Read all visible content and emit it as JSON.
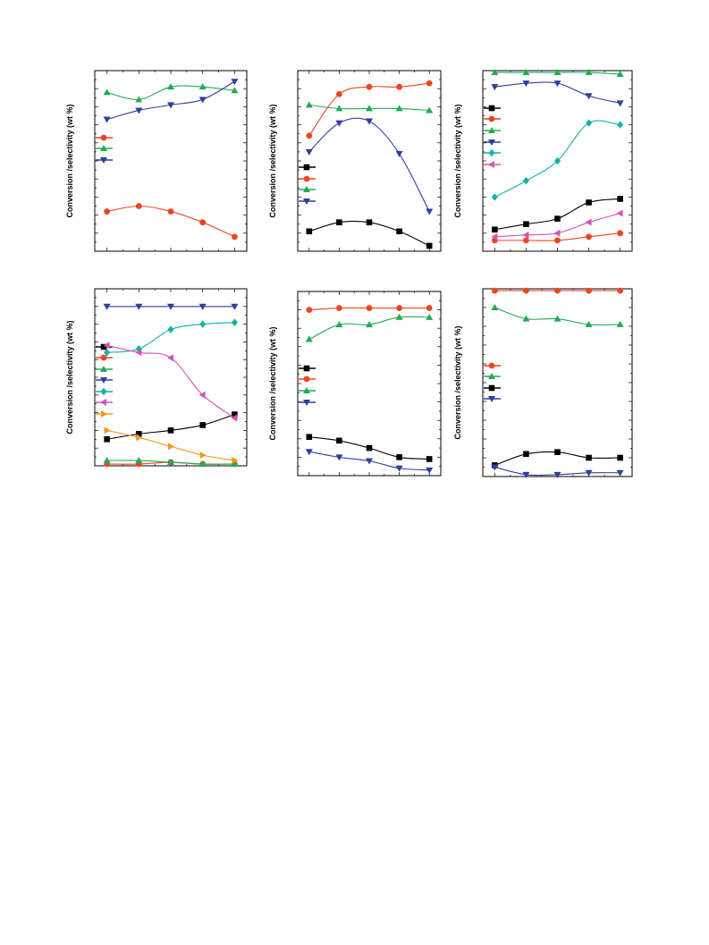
{
  "colors": {
    "black": "#000000",
    "red": "#ee4422",
    "green": "#22aa55",
    "blue": "#2e3e9c",
    "cyan": "#11b3a8",
    "magenta": "#d254b8",
    "orange": "#f5961e"
  },
  "chart_data": [
    {
      "type": "scatter",
      "ylabel": "Conversion /selectivity (wt %)",
      "x": [
        1,
        2,
        3,
        4,
        5
      ],
      "ylim": [
        0,
        100
      ],
      "legend_placement": "left",
      "series": [
        {
          "color": "red",
          "marker": "circle",
          "values": [
            22,
            25,
            22,
            16,
            8
          ]
        },
        {
          "color": "green",
          "marker": "triangle-up",
          "values": [
            88,
            84,
            91,
            91,
            89
          ]
        },
        {
          "color": "blue",
          "marker": "triangle-down",
          "values": [
            73,
            78,
            81,
            84,
            94
          ]
        }
      ]
    },
    {
      "type": "scatter",
      "ylabel": "Conversion /selectivity (wt %)",
      "x": [
        1,
        2,
        3,
        4,
        5
      ],
      "ylim": [
        0,
        100
      ],
      "legend_placement": "left",
      "series": [
        {
          "color": "black",
          "marker": "square",
          "values": [
            11,
            16,
            16,
            11,
            3
          ]
        },
        {
          "color": "red",
          "marker": "circle",
          "values": [
            64,
            87,
            91,
            91,
            93
          ]
        },
        {
          "color": "green",
          "marker": "triangle-up",
          "values": [
            81,
            79,
            79,
            79,
            78
          ]
        },
        {
          "color": "blue",
          "marker": "triangle-down",
          "values": [
            55,
            71,
            72,
            54,
            22
          ]
        }
      ]
    },
    {
      "type": "scatter",
      "ylabel": "Conversion /selectivity (wt %)",
      "x": [
        1,
        2,
        3,
        4,
        5
      ],
      "ylim": [
        0,
        100
      ],
      "legend_placement": "left",
      "series": [
        {
          "color": "black",
          "marker": "square",
          "values": [
            12,
            15,
            18,
            27,
            29
          ]
        },
        {
          "color": "red",
          "marker": "circle",
          "values": [
            6,
            6,
            6,
            8,
            10
          ]
        },
        {
          "color": "green",
          "marker": "triangle-up",
          "values": [
            99,
            99,
            99,
            99,
            98
          ]
        },
        {
          "color": "blue",
          "marker": "triangle-down",
          "values": [
            91,
            93,
            93,
            86,
            82
          ]
        },
        {
          "color": "cyan",
          "marker": "diamond",
          "values": [
            30,
            39,
            50,
            71,
            70
          ]
        },
        {
          "color": "magenta",
          "marker": "triangle-left",
          "values": [
            8,
            9,
            10,
            16,
            21
          ]
        }
      ]
    },
    {
      "type": "scatter",
      "ylabel": "Conversion /selectivity (wt %)",
      "x": [
        1,
        2,
        3,
        4,
        5
      ],
      "ylim": [
        0,
        100
      ],
      "legend_placement": "left",
      "series": [
        {
          "color": "black",
          "marker": "square",
          "values": [
            15,
            18,
            20,
            23,
            29
          ]
        },
        {
          "color": "red",
          "marker": "circle",
          "values": [
            1,
            1,
            2,
            1,
            1
          ]
        },
        {
          "color": "green",
          "marker": "triangle-up",
          "values": [
            3,
            3,
            2,
            1,
            1
          ]
        },
        {
          "color": "blue",
          "marker": "triangle-down",
          "values": [
            90,
            90,
            90,
            90,
            90
          ]
        },
        {
          "color": "cyan",
          "marker": "diamond",
          "values": [
            64,
            66,
            77,
            80,
            81
          ]
        },
        {
          "color": "magenta",
          "marker": "triangle-left",
          "values": [
            68,
            64,
            61,
            40,
            27
          ]
        },
        {
          "color": "orange",
          "marker": "triangle-right",
          "values": [
            20,
            16,
            11,
            6,
            3
          ]
        }
      ]
    },
    {
      "type": "scatter",
      "ylabel": "Conversion /selectivity (wt %)",
      "x": [
        1,
        2,
        3,
        4,
        5
      ],
      "ylim": [
        0,
        100
      ],
      "legend_placement": "left",
      "series": [
        {
          "color": "black",
          "marker": "square",
          "values": [
            21,
            19,
            15,
            10,
            9
          ]
        },
        {
          "color": "red",
          "marker": "circle",
          "values": [
            90,
            91,
            91,
            91,
            91
          ]
        },
        {
          "color": "green",
          "marker": "triangle-up",
          "values": [
            74,
            82,
            82,
            86,
            86
          ]
        },
        {
          "color": "blue",
          "marker": "triangle-down",
          "values": [
            13,
            10,
            8,
            4,
            3
          ]
        }
      ]
    },
    {
      "type": "scatter",
      "ylabel": "Conversion /selectivity (wt %)",
      "x": [
        1,
        2,
        3,
        4,
        5
      ],
      "ylim": [
        0,
        100
      ],
      "legend_placement": "left",
      "series": [
        {
          "color": "red",
          "marker": "circle",
          "values": [
            99,
            99,
            99,
            99,
            99
          ]
        },
        {
          "color": "green",
          "marker": "triangle-up",
          "values": [
            90,
            84,
            84,
            81,
            81
          ]
        },
        {
          "color": "black",
          "marker": "square",
          "values": [
            6,
            12,
            13,
            10,
            10
          ]
        },
        {
          "color": "blue",
          "marker": "triangle-down",
          "values": [
            5,
            1,
            1,
            2,
            2
          ]
        }
      ]
    }
  ]
}
